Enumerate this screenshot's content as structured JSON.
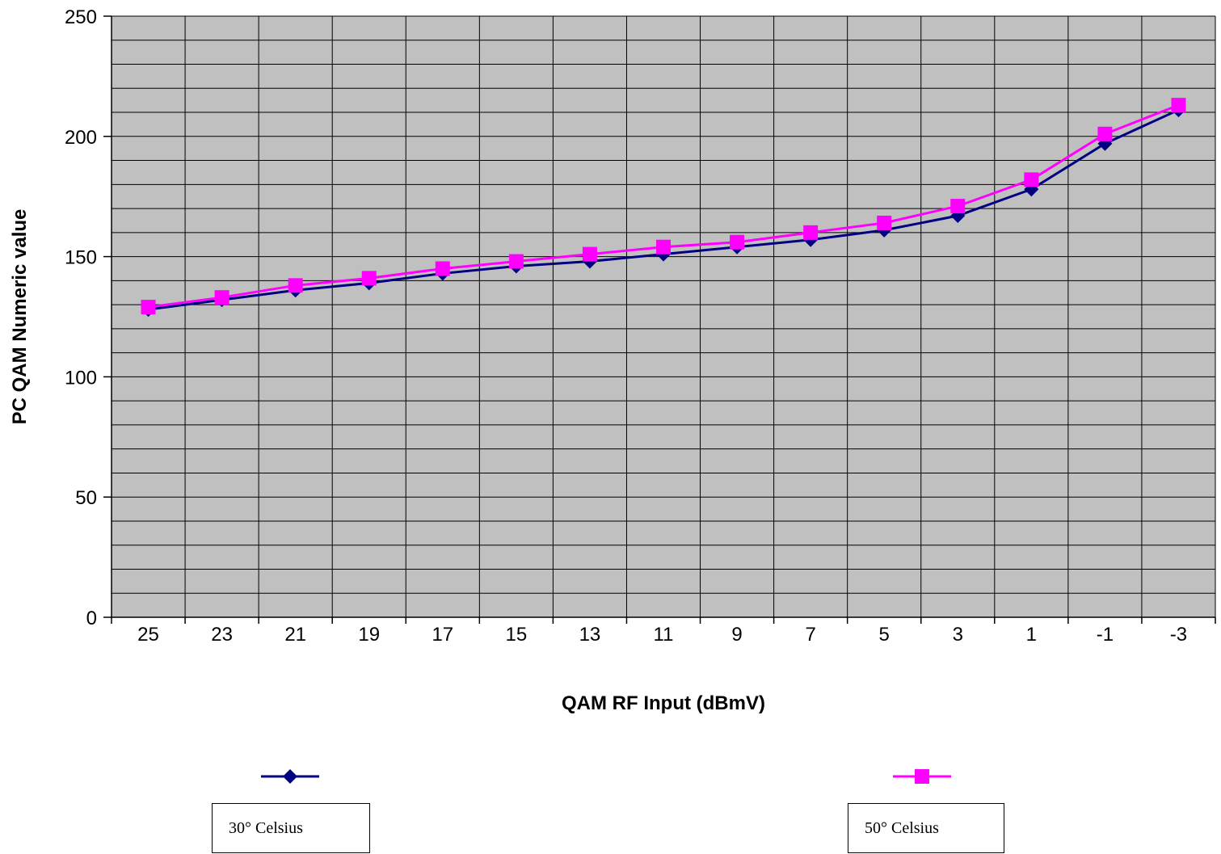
{
  "chart_data": {
    "type": "line",
    "categories": [
      "25",
      "23",
      "21",
      "19",
      "17",
      "15",
      "13",
      "11",
      "9",
      "7",
      "5",
      "3",
      "1",
      "-1",
      "-3"
    ],
    "series": [
      {
        "name": "30° Celsius",
        "values": [
          128,
          132,
          136,
          139,
          143,
          146,
          148,
          151,
          154,
          157,
          161,
          167,
          178,
          197,
          211
        ],
        "color": "#000080",
        "marker": "diamond"
      },
      {
        "name": "50° Celsius",
        "values": [
          129,
          133,
          138,
          141,
          145,
          148,
          151,
          154,
          156,
          160,
          164,
          171,
          182,
          201,
          213
        ],
        "color": "#ff00ff",
        "marker": "square"
      }
    ],
    "xlabel": "QAM RF Input (dBmV)",
    "ylabel": "PC QAM Numeric value",
    "ylim": [
      0,
      250
    ],
    "yticks": [
      0,
      50,
      100,
      150,
      200,
      250
    ],
    "grid": true,
    "plot_background": "#c0c0c0",
    "legend_position": "bottom"
  }
}
